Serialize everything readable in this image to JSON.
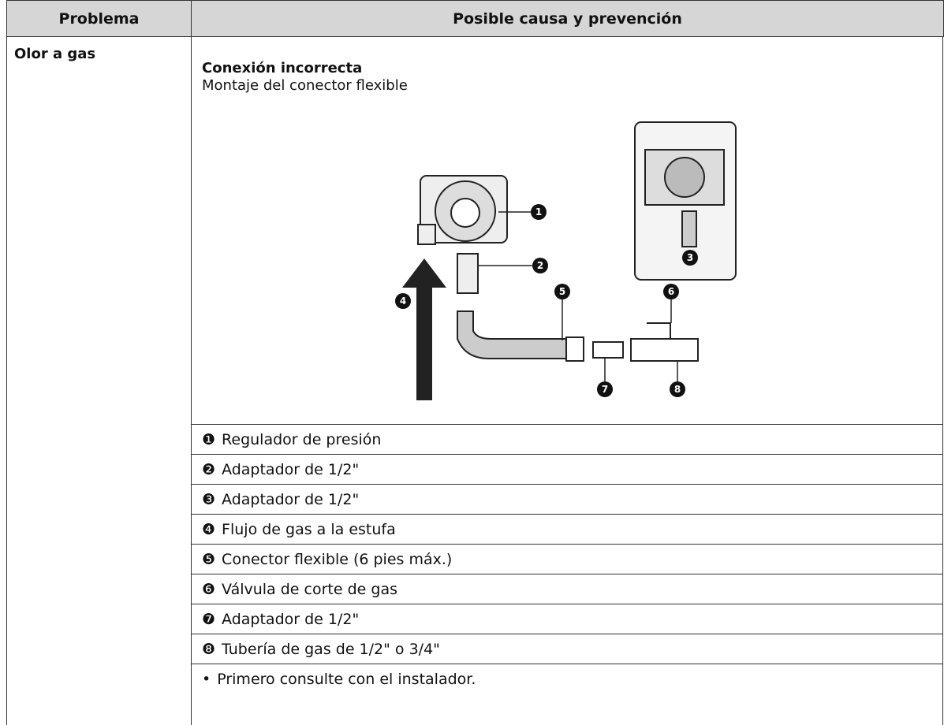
{
  "table": {
    "header": [
      "Problema",
      "Posible causa y prevención"
    ],
    "rows": [
      {
        "problem": "Olor a gas",
        "cause_title": "Conexión incorrecta",
        "cause_subtitle": "Montaje del conector flexible",
        "diagram_callouts": [
          "1",
          "2",
          "3",
          "4",
          "5",
          "6",
          "7",
          "8"
        ],
        "legend": [
          {
            "marker": "❶",
            "text": "Regulador de presión"
          },
          {
            "marker": "❷",
            "text": "Adaptador de 1/2\""
          },
          {
            "marker": "❸",
            "text": "Adaptador de 1/2\""
          },
          {
            "marker": "❹",
            "text": "Flujo de gas a la estufa"
          },
          {
            "marker": "❺",
            "text": "Conector flexible (6 pies máx.)"
          },
          {
            "marker": "❻",
            "text": "Válvula de corte de gas"
          },
          {
            "marker": "❼",
            "text": "Adaptador de 1/2\""
          },
          {
            "marker": "❽",
            "text": "Tubería de gas de 1/2\" o 3/4\""
          }
        ],
        "note": {
          "marker": "•",
          "text": "Primero consulte con el instalador."
        }
      }
    ]
  }
}
